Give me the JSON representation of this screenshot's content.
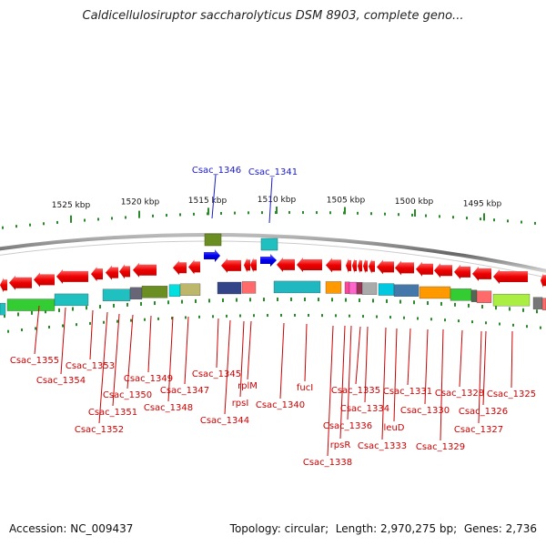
{
  "title": "Caldicellulosiruptor saccharolyticus DSM 8903, complete geno...",
  "footer": {
    "accession_label": "Accession:",
    "accession_value": "NC_009437",
    "topology_label": "Topology:",
    "topology_value": "circular",
    "length_label": "Length:",
    "length_value": "2,970,275 bp",
    "genes_label": "Genes:",
    "genes_value": "2,736"
  },
  "colors": {
    "forward_gene": "#1a1aff",
    "reverse_gene": "#ff1a1a",
    "label_forward": "#1a1acc",
    "label_reverse": "#cc0000",
    "tick": "#2a8a2a",
    "backbone": "#888888"
  },
  "scale_labels": [
    "1525 kbp",
    "1520 kbp",
    "1515 kbp",
    "1510 kbp",
    "1505 kbp",
    "1500 kbp",
    "1495 kbp"
  ],
  "forward_genes": [
    "Csac_1346",
    "Csac_1341"
  ],
  "reverse_genes": [
    "Csac_1355",
    "Csac_1354",
    "Csac_1353",
    "Csac_1352",
    "Csac_1351",
    "Csac_1350",
    "Csac_1349",
    "Csac_1348",
    "Csac_1347",
    "Csac_1345",
    "Csac_1344",
    "rpsI",
    "rplM",
    "Csac_1340",
    "fucI",
    "Csac_1338",
    "rpsR",
    "Csac_1336",
    "Csac_1335",
    "Csac_1334",
    "Csac_1333",
    "leuD",
    "Csac_1331",
    "Csac_1330",
    "Csac_1329",
    "Csac_1328",
    "Csac_1327",
    "Csac_1326",
    "Csac_1325"
  ]
}
